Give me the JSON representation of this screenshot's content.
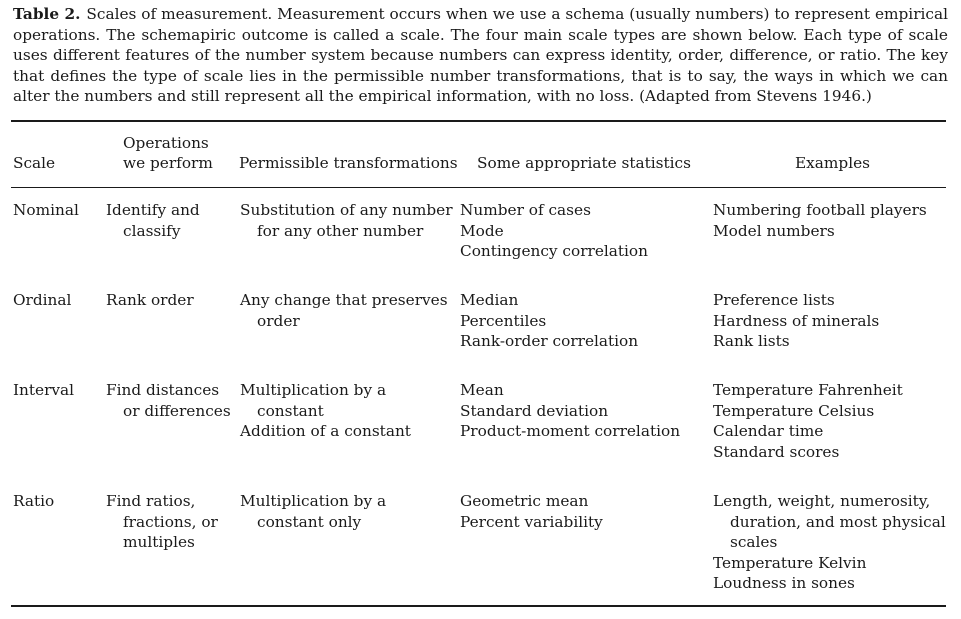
{
  "caption": {
    "label": "Table 2.",
    "text": "Scales of measurement. Measurement occurs when we use a schema (usually numbers) to represent empirical operations. The schemapiric outcome is called a scale. The four main scale types are shown below. Each type of scale uses different features of the number system because numbers can express identity, order, difference, or ratio. The key that defines the type of scale lies in the permissible number transformations, that is to say, the ways in which we can alter the numbers and still represent all the empirical information, with no loss. (Adapted from Stevens 1946.)"
  },
  "headers": {
    "scale": "Scale",
    "operations_1": "Operations",
    "operations_2": "we perform",
    "transformations": "Permissible transformations",
    "statistics": "Some appropriate statistics",
    "examples": "Examples"
  },
  "rows": [
    {
      "scale": "Nominal",
      "operations": [
        "Identify and",
        "classify"
      ],
      "transformations": [
        "Substitution of any number",
        "for any other number"
      ],
      "statistics": [
        "Number of cases",
        "Mode",
        "Contingency correlation"
      ],
      "examples": [
        "Numbering football players",
        "Model numbers"
      ]
    },
    {
      "scale": "Ordinal",
      "operations": [
        "Rank order"
      ],
      "transformations": [
        "Any change that preserves",
        "order"
      ],
      "statistics": [
        "Median",
        "Percentiles",
        "Rank-order correlation"
      ],
      "examples": [
        "Preference lists",
        "Hardness of minerals",
        "Rank lists"
      ]
    },
    {
      "scale": "Interval",
      "operations": [
        "Find distances",
        "or differences"
      ],
      "transformations": [
        "Multiplication by a",
        "constant",
        "Addition of a constant"
      ],
      "statistics": [
        "Mean",
        "Standard deviation",
        "Product-moment correlation"
      ],
      "examples": [
        "Temperature Fahrenheit",
        "Temperature Celsius",
        "Calendar time",
        "Standard scores"
      ]
    },
    {
      "scale": "Ratio",
      "operations": [
        "Find ratios,",
        "fractions, or",
        "multiples"
      ],
      "transformations": [
        "Multiplication by a",
        "constant only"
      ],
      "statistics": [
        "Geometric mean",
        "Percent variability"
      ],
      "examples": [
        "Length, weight, numerosity,",
        "duration, and most physical",
        "scales",
        "Temperature Kelvin",
        "Loudness in sones"
      ]
    }
  ]
}
